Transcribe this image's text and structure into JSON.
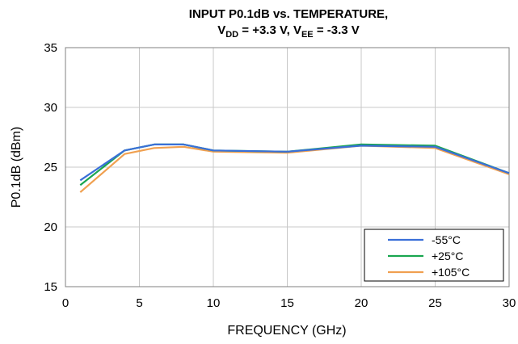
{
  "chart_data": {
    "type": "line",
    "title_line1": "INPUT P0.1dB vs. TEMPERATURE,",
    "title_line2": {
      "vdd_main": "V",
      "vdd_sub": "DD",
      "vdd_value": " = +3.3 V, ",
      "vee_main": "V",
      "vee_sub": "EE",
      "vee_value": " = -3.3 V"
    },
    "xlabel": "FREQUENCY (GHz)",
    "ylabel": "P0.1dB (dBm)",
    "xlim": [
      0,
      30
    ],
    "ylim": [
      15,
      35
    ],
    "xticks": [
      "0",
      "5",
      "10",
      "15",
      "20",
      "25",
      "30"
    ],
    "xtick_values": [
      0,
      5,
      10,
      15,
      20,
      25,
      30
    ],
    "yticks": [
      "15",
      "20",
      "25",
      "30",
      "35"
    ],
    "ytick_values": [
      15,
      20,
      25,
      30,
      35
    ],
    "grid": true,
    "legend_position": "bottom-right",
    "x": [
      1,
      4,
      6,
      8,
      10,
      15,
      20,
      25,
      30
    ],
    "series": [
      {
        "name": "-55°C",
        "color": "#3a6fd8",
        "values": [
          23.9,
          26.4,
          26.9,
          26.9,
          26.4,
          26.3,
          26.8,
          26.7,
          24.5
        ]
      },
      {
        "name": "+25°C",
        "color": "#1aa650",
        "values": [
          23.5,
          26.4,
          26.9,
          26.9,
          26.4,
          26.3,
          26.9,
          26.8,
          24.5
        ]
      },
      {
        "name": "+105°C",
        "color": "#f0a050",
        "values": [
          22.9,
          26.1,
          26.6,
          26.7,
          26.3,
          26.2,
          26.8,
          26.6,
          24.4
        ]
      }
    ]
  }
}
